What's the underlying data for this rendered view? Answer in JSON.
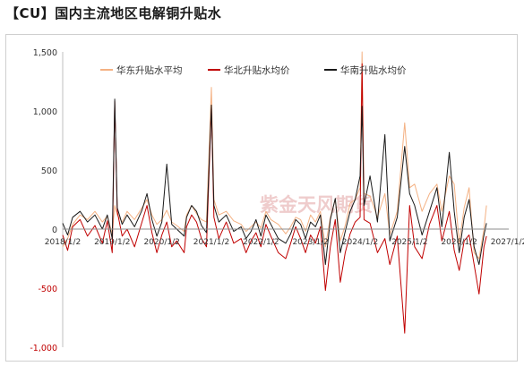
{
  "title": "【CU】国内主流地区电解铜升贴水",
  "watermark": "紫金天风期货",
  "chart_data": {
    "type": "line",
    "ylim": [
      -1000,
      1500
    ],
    "yticks": [
      {
        "value": 1500,
        "label": "1,500"
      },
      {
        "value": 1000,
        "label": "1,000"
      },
      {
        "value": 500,
        "label": "500"
      },
      {
        "value": 0,
        "label": "0"
      },
      {
        "value": -500,
        "label": "-500"
      },
      {
        "value": -1000,
        "label": "-1,000"
      }
    ],
    "x_categories": [
      "2018/1/2",
      "2019/1/2",
      "2020/1/2",
      "2021/1/2",
      "2022/1/2",
      "2023/1/2",
      "2024/1/2",
      "2025/1/2",
      "2026/1/2",
      "2027/1/2"
    ],
    "legend_position": "top",
    "series": [
      {
        "name": "华东升贴水平均",
        "color": "#f4b183",
        "points": [
          [
            0,
            -150
          ],
          [
            0.1,
            -80
          ],
          [
            0.2,
            40
          ],
          [
            0.35,
            120
          ],
          [
            0.5,
            80
          ],
          [
            0.65,
            150
          ],
          [
            0.8,
            60
          ],
          [
            0.9,
            110
          ],
          [
            1.0,
            -40
          ],
          [
            1.05,
            200
          ],
          [
            1.1,
            120
          ],
          [
            1.2,
            60
          ],
          [
            1.3,
            150
          ],
          [
            1.45,
            80
          ],
          [
            1.6,
            180
          ],
          [
            1.7,
            250
          ],
          [
            1.8,
            120
          ],
          [
            1.9,
            40
          ],
          [
            2.0,
            80
          ],
          [
            2.1,
            160
          ],
          [
            2.2,
            60
          ],
          [
            2.3,
            30
          ],
          [
            2.45,
            -20
          ],
          [
            2.5,
            120
          ],
          [
            2.6,
            200
          ],
          [
            2.7,
            130
          ],
          [
            2.8,
            80
          ],
          [
            2.9,
            60
          ],
          [
            3.0,
            1200
          ],
          [
            3.05,
            250
          ],
          [
            3.15,
            120
          ],
          [
            3.3,
            150
          ],
          [
            3.45,
            70
          ],
          [
            3.6,
            40
          ],
          [
            3.7,
            -20
          ],
          [
            3.8,
            20
          ],
          [
            3.9,
            60
          ],
          [
            4.0,
            10
          ],
          [
            4.1,
            150
          ],
          [
            4.2,
            80
          ],
          [
            4.35,
            40
          ],
          [
            4.5,
            -40
          ],
          [
            4.6,
            20
          ],
          [
            4.7,
            100
          ],
          [
            4.8,
            80
          ],
          [
            4.9,
            -20
          ],
          [
            5.0,
            120
          ],
          [
            5.1,
            60
          ],
          [
            5.2,
            150
          ],
          [
            5.3,
            -150
          ],
          [
            5.4,
            100
          ],
          [
            5.5,
            250
          ],
          [
            5.6,
            -100
          ],
          [
            5.7,
            30
          ],
          [
            5.8,
            220
          ],
          [
            5.9,
            250
          ],
          [
            6.0,
            350
          ],
          [
            6.04,
            1500
          ],
          [
            6.08,
            300
          ],
          [
            6.2,
            280
          ],
          [
            6.35,
            100
          ],
          [
            6.5,
            300
          ],
          [
            6.6,
            -50
          ],
          [
            6.75,
            150
          ],
          [
            6.9,
            900
          ],
          [
            7.0,
            350
          ],
          [
            7.1,
            380
          ],
          [
            7.25,
            150
          ],
          [
            7.4,
            300
          ],
          [
            7.55,
            380
          ],
          [
            7.65,
            150
          ],
          [
            7.8,
            450
          ],
          [
            7.9,
            380
          ],
          [
            8.0,
            -120
          ],
          [
            8.1,
            180
          ],
          [
            8.2,
            350
          ],
          [
            8.3,
            -200
          ],
          [
            8.4,
            -250
          ],
          [
            8.5,
            0
          ],
          [
            8.55,
            200
          ]
        ]
      },
      {
        "name": "华北升贴水均价",
        "color": "#c00000",
        "points": [
          [
            0,
            -50
          ],
          [
            0.1,
            -180
          ],
          [
            0.2,
            20
          ],
          [
            0.35,
            80
          ],
          [
            0.5,
            -60
          ],
          [
            0.65,
            30
          ],
          [
            0.8,
            -120
          ],
          [
            0.9,
            70
          ],
          [
            1.0,
            -200
          ],
          [
            1.05,
            1080
          ],
          [
            1.1,
            150
          ],
          [
            1.2,
            -60
          ],
          [
            1.3,
            0
          ],
          [
            1.45,
            -150
          ],
          [
            1.6,
            60
          ],
          [
            1.7,
            200
          ],
          [
            1.8,
            -30
          ],
          [
            1.9,
            -200
          ],
          [
            2.0,
            -50
          ],
          [
            2.1,
            60
          ],
          [
            2.2,
            -150
          ],
          [
            2.3,
            -100
          ],
          [
            2.45,
            -200
          ],
          [
            2.5,
            20
          ],
          [
            2.6,
            120
          ],
          [
            2.7,
            60
          ],
          [
            2.8,
            -80
          ],
          [
            2.9,
            -150
          ],
          [
            3.0,
            1030
          ],
          [
            3.05,
            100
          ],
          [
            3.15,
            -80
          ],
          [
            3.3,
            60
          ],
          [
            3.45,
            -120
          ],
          [
            3.6,
            -80
          ],
          [
            3.7,
            -200
          ],
          [
            3.8,
            -100
          ],
          [
            3.9,
            -30
          ],
          [
            4.0,
            -150
          ],
          [
            4.1,
            40
          ],
          [
            4.2,
            -60
          ],
          [
            4.35,
            -200
          ],
          [
            4.5,
            -250
          ],
          [
            4.6,
            -120
          ],
          [
            4.7,
            20
          ],
          [
            4.8,
            -80
          ],
          [
            4.9,
            -200
          ],
          [
            5.0,
            -50
          ],
          [
            5.1,
            -120
          ],
          [
            5.2,
            20
          ],
          [
            5.3,
            -520
          ],
          [
            5.4,
            -150
          ],
          [
            5.5,
            80
          ],
          [
            5.6,
            -450
          ],
          [
            5.7,
            -200
          ],
          [
            5.8,
            -40
          ],
          [
            5.9,
            60
          ],
          [
            6.0,
            100
          ],
          [
            6.04,
            1400
          ],
          [
            6.08,
            80
          ],
          [
            6.2,
            50
          ],
          [
            6.35,
            -200
          ],
          [
            6.5,
            -80
          ],
          [
            6.6,
            -300
          ],
          [
            6.75,
            -60
          ],
          [
            6.9,
            -880
          ],
          [
            7.0,
            200
          ],
          [
            7.1,
            -150
          ],
          [
            7.25,
            -250
          ],
          [
            7.4,
            40
          ],
          [
            7.55,
            200
          ],
          [
            7.65,
            -100
          ],
          [
            7.8,
            150
          ],
          [
            7.9,
            -180
          ],
          [
            8.0,
            -350
          ],
          [
            8.1,
            -100
          ],
          [
            8.2,
            -50
          ],
          [
            8.3,
            -300
          ],
          [
            8.4,
            -550
          ],
          [
            8.5,
            -150
          ],
          [
            8.55,
            -60
          ]
        ]
      },
      {
        "name": "华南升贴水均价",
        "color": "#1a1a1a",
        "points": [
          [
            0,
            50
          ],
          [
            0.1,
            -50
          ],
          [
            0.2,
            100
          ],
          [
            0.35,
            150
          ],
          [
            0.5,
            60
          ],
          [
            0.65,
            120
          ],
          [
            0.8,
            0
          ],
          [
            0.9,
            120
          ],
          [
            1.0,
            -80
          ],
          [
            1.05,
            1100
          ],
          [
            1.1,
            180
          ],
          [
            1.2,
            40
          ],
          [
            1.3,
            120
          ],
          [
            1.45,
            20
          ],
          [
            1.6,
            160
          ],
          [
            1.7,
            300
          ],
          [
            1.8,
            80
          ],
          [
            1.9,
            -60
          ],
          [
            2.0,
            60
          ],
          [
            2.1,
            550
          ],
          [
            2.2,
            40
          ],
          [
            2.3,
            0
          ],
          [
            2.45,
            -60
          ],
          [
            2.5,
            100
          ],
          [
            2.6,
            200
          ],
          [
            2.7,
            150
          ],
          [
            2.8,
            30
          ],
          [
            2.9,
            -30
          ],
          [
            3.0,
            1050
          ],
          [
            3.05,
            200
          ],
          [
            3.15,
            60
          ],
          [
            3.3,
            120
          ],
          [
            3.45,
            -20
          ],
          [
            3.6,
            20
          ],
          [
            3.7,
            -80
          ],
          [
            3.8,
            -20
          ],
          [
            3.9,
            80
          ],
          [
            4.0,
            -60
          ],
          [
            4.1,
            120
          ],
          [
            4.2,
            40
          ],
          [
            4.35,
            -80
          ],
          [
            4.5,
            -120
          ],
          [
            4.6,
            -40
          ],
          [
            4.7,
            80
          ],
          [
            4.8,
            40
          ],
          [
            4.9,
            -80
          ],
          [
            5.0,
            60
          ],
          [
            5.1,
            20
          ],
          [
            5.2,
            120
          ],
          [
            5.3,
            -300
          ],
          [
            5.4,
            80
          ],
          [
            5.5,
            260
          ],
          [
            5.6,
            -200
          ],
          [
            5.7,
            -20
          ],
          [
            5.8,
            150
          ],
          [
            5.9,
            250
          ],
          [
            6.0,
            450
          ],
          [
            6.04,
            1040
          ],
          [
            6.08,
            200
          ],
          [
            6.2,
            450
          ],
          [
            6.35,
            60
          ],
          [
            6.5,
            800
          ],
          [
            6.6,
            -100
          ],
          [
            6.75,
            100
          ],
          [
            6.9,
            700
          ],
          [
            7.0,
            300
          ],
          [
            7.1,
            200
          ],
          [
            7.25,
            -50
          ],
          [
            7.4,
            150
          ],
          [
            7.55,
            350
          ],
          [
            7.65,
            20
          ],
          [
            7.8,
            650
          ],
          [
            7.9,
            150
          ],
          [
            8.0,
            -200
          ],
          [
            8.1,
            100
          ],
          [
            8.2,
            250
          ],
          [
            8.3,
            -150
          ],
          [
            8.4,
            -300
          ],
          [
            8.5,
            -50
          ],
          [
            8.55,
            50
          ]
        ]
      }
    ]
  }
}
